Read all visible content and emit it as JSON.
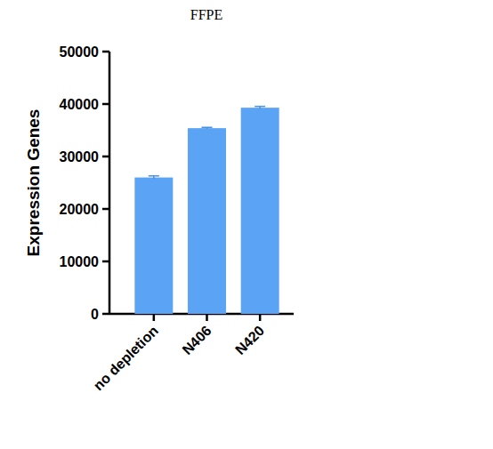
{
  "chart_data": {
    "type": "bar",
    "title": "FFPE",
    "y_label": "Expression Genes",
    "categories": [
      "no depletion",
      "N406",
      "N420"
    ],
    "values": [
      26000,
      35400,
      39300
    ],
    "errors": [
      300,
      150,
      250
    ],
    "color": "#5aa3f5",
    "ylim": [
      0,
      50000
    ],
    "yticks": [
      0,
      10000,
      20000,
      30000,
      40000,
      50000
    ],
    "grid": false
  }
}
